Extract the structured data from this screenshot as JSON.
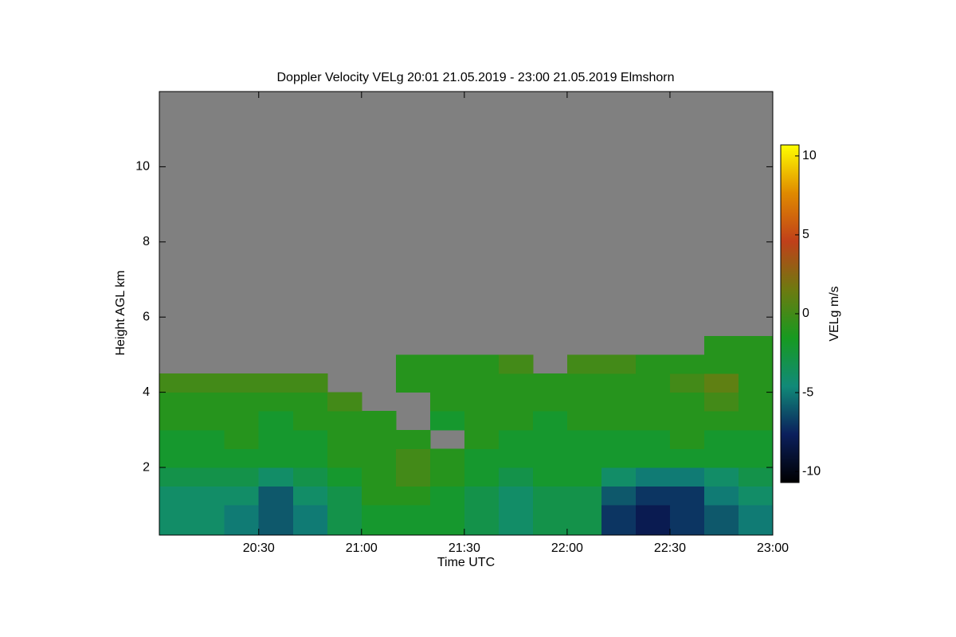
{
  "chart_data": {
    "type": "heatmap",
    "title": "Doppler Velocity VELg   20:01 21.05.2019 - 23:00 21.05.2019 Elmshorn",
    "x_label": "Time UTC",
    "y_label": "Height AGL km",
    "colorbar_label": "VELg m/s",
    "xlim": [
      20.0167,
      23
    ],
    "ylim": [
      0.2,
      12
    ],
    "clim": [
      -10.7,
      10.7
    ],
    "xticks": [
      {
        "value": 20.5,
        "label": "20:30"
      },
      {
        "value": 21,
        "label": "21:00"
      },
      {
        "value": 21.5,
        "label": "21:30"
      },
      {
        "value": 22,
        "label": "22:00"
      },
      {
        "value": 22.5,
        "label": "22:30"
      },
      {
        "value": 23,
        "label": "23:00"
      }
    ],
    "yticks": [
      2,
      4,
      6,
      8,
      10
    ],
    "cticks": [
      -10,
      -5,
      0,
      5,
      10
    ],
    "missing_color": "#808080",
    "colormap": [
      "#000000",
      "#0b1f5c",
      "#118a78",
      "#179a20",
      "#6e7a10",
      "#c0401a",
      "#e08a00",
      "#ffff00"
    ],
    "x_bins": [
      20.0167,
      20.1667,
      20.3333,
      20.5,
      20.6667,
      20.8333,
      21,
      21.1667,
      21.3333,
      21.5,
      21.6667,
      21.8333,
      22,
      22.1667,
      22.3333,
      22.5,
      22.6667,
      22.8333,
      23
    ],
    "y_bins": [
      0.2,
      0.5,
      1,
      1.5,
      2,
      2.5,
      3,
      3.5,
      4,
      4.5,
      5,
      5.5
    ],
    "values": [
      [
        -4,
        -4,
        -5,
        -6,
        -5,
        -3,
        -2,
        -2,
        -2,
        -3,
        -4,
        -3,
        -3,
        -7,
        -8,
        -7,
        -6,
        -5
      ],
      [
        -4,
        -4,
        -5,
        -6,
        -5,
        -3,
        -2,
        -2,
        -2,
        -3,
        -4,
        -3,
        -3,
        -7,
        -8,
        -7,
        -6,
        -5
      ],
      [
        -4,
        -4,
        -4,
        -6,
        -4,
        -3,
        -1,
        -1,
        -2,
        -3,
        -4,
        -3,
        -3,
        -6,
        -7,
        -7,
        -5,
        -4
      ],
      [
        -3,
        -3,
        -3,
        -4,
        -3,
        -2,
        -1,
        0,
        -1,
        -2,
        -3,
        -2,
        -2,
        -4,
        -5,
        -5,
        -4,
        -3
      ],
      [
        -2,
        -2,
        -2,
        -2,
        -2,
        -1,
        -1,
        0,
        -1,
        -2,
        -2,
        -2,
        -2,
        -2,
        -2,
        -2,
        -2,
        -2
      ],
      [
        -2,
        -2,
        -1,
        -2,
        -2,
        -1,
        -1,
        -1,
        null,
        -1,
        -2,
        -2,
        -2,
        -2,
        -2,
        -1,
        -2,
        -2
      ],
      [
        -1,
        -1,
        -1,
        -2,
        -1,
        -1,
        -1,
        null,
        -2,
        -1,
        -1,
        -2,
        -1,
        -1,
        -1,
        -1,
        -1,
        -1
      ],
      [
        -1,
        -1,
        -1,
        -1,
        -1,
        0,
        null,
        null,
        -1,
        -1,
        -1,
        -1,
        -1,
        -1,
        -1,
        -1,
        0,
        -1
      ],
      [
        0,
        0,
        0,
        0,
        0,
        null,
        null,
        -1,
        -1,
        -1,
        -1,
        -1,
        -1,
        -1,
        -1,
        0,
        1,
        -1
      ],
      [
        null,
        null,
        null,
        null,
        null,
        null,
        null,
        -1,
        -1,
        -1,
        0,
        null,
        0,
        0,
        -1,
        -1,
        -1,
        -1
      ],
      [
        null,
        null,
        null,
        null,
        null,
        null,
        null,
        null,
        null,
        null,
        null,
        null,
        null,
        null,
        null,
        null,
        -1,
        -1
      ]
    ]
  }
}
